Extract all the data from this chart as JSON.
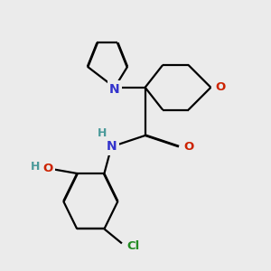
{
  "background_color": "#ebebeb",
  "atom_colors": {
    "C": "#000000",
    "N": "#3333cc",
    "O": "#cc2200",
    "Cl": "#228B22",
    "H": "#4a9a9a"
  },
  "bond_color": "#000000",
  "bond_width": 1.6,
  "figsize": [
    3.0,
    3.0
  ],
  "dpi": 100
}
